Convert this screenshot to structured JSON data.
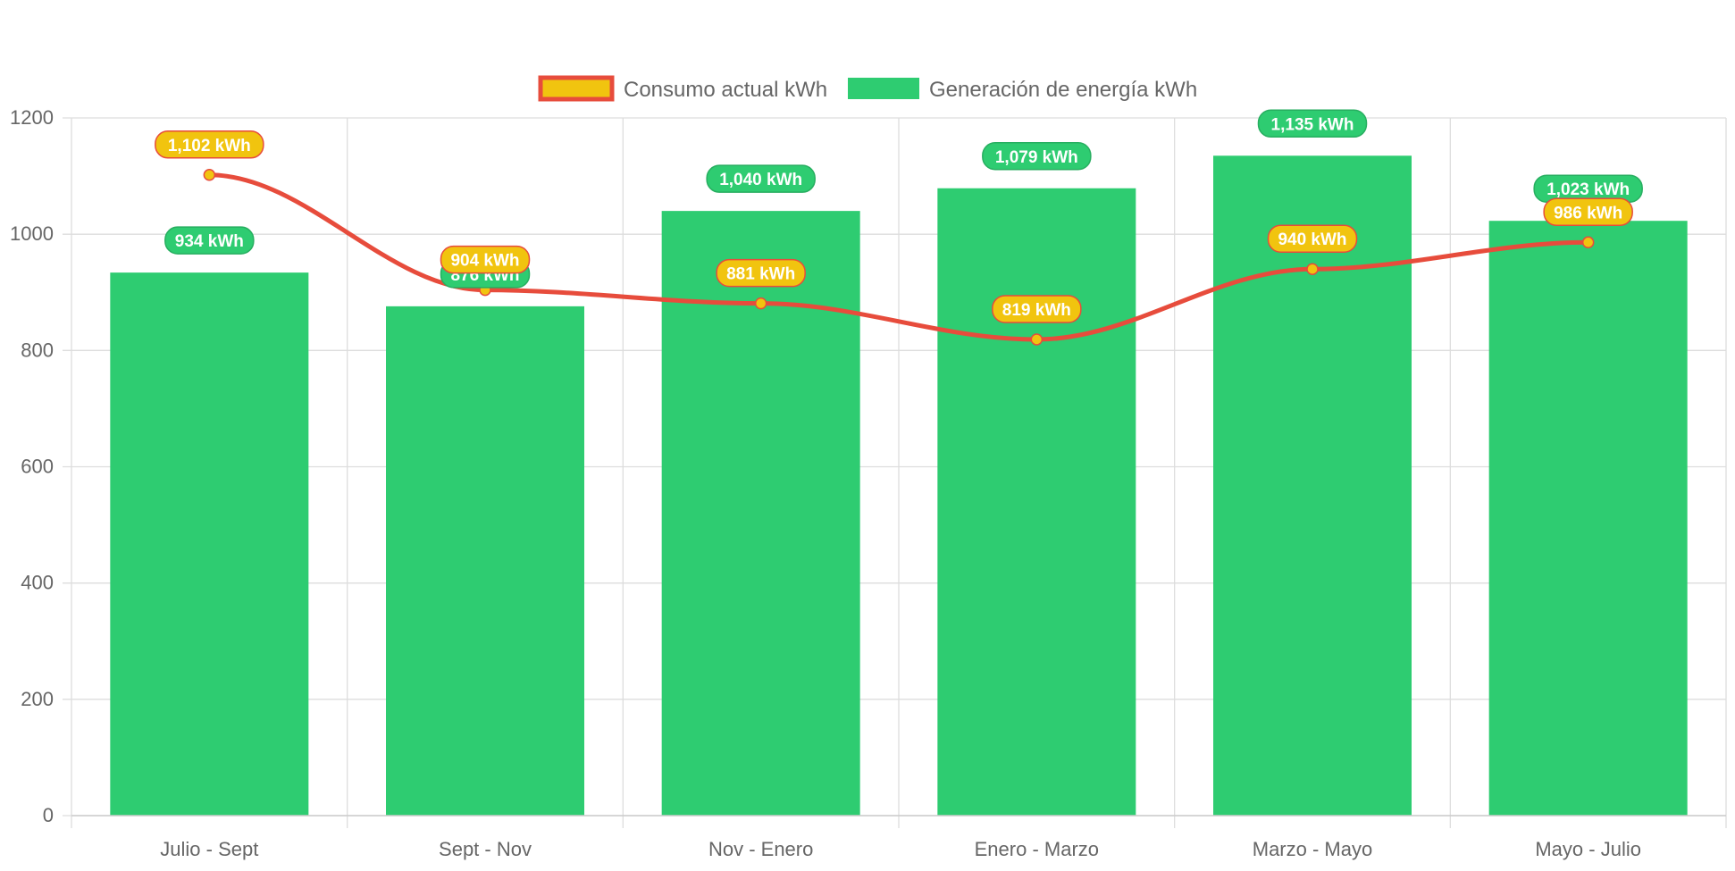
{
  "chart_data": {
    "type": "bar",
    "categories": [
      "Julio - Sept",
      "Sept - Nov",
      "Nov - Enero",
      "Enero - Marzo",
      "Marzo - Mayo",
      "Mayo - Julio"
    ],
    "series": [
      {
        "name": "Consumo actual kWh",
        "type": "line",
        "values": [
          1102,
          904,
          881,
          819,
          940,
          986
        ],
        "labels": [
          "1,102 kWh",
          "904 kWh",
          "881 kWh",
          "819 kWh",
          "940 kWh",
          "986 kWh"
        ],
        "color": "#e74c3c",
        "fill": "#f1c40f"
      },
      {
        "name": "Generación de energía kWh",
        "type": "bar",
        "values": [
          934,
          876,
          1040,
          1079,
          1135,
          1023
        ],
        "labels": [
          "934 kWh",
          "876 kWh",
          "1,040 kWh",
          "1,079 kWh",
          "1,135 kWh",
          "1,023 kWh"
        ],
        "color": "#2ecc71"
      }
    ],
    "ylim": [
      0,
      1200
    ],
    "yticks": [
      "0",
      "200",
      "400",
      "600",
      "800",
      "1000",
      "1200"
    ],
    "grid": true,
    "legend_position": "top"
  }
}
